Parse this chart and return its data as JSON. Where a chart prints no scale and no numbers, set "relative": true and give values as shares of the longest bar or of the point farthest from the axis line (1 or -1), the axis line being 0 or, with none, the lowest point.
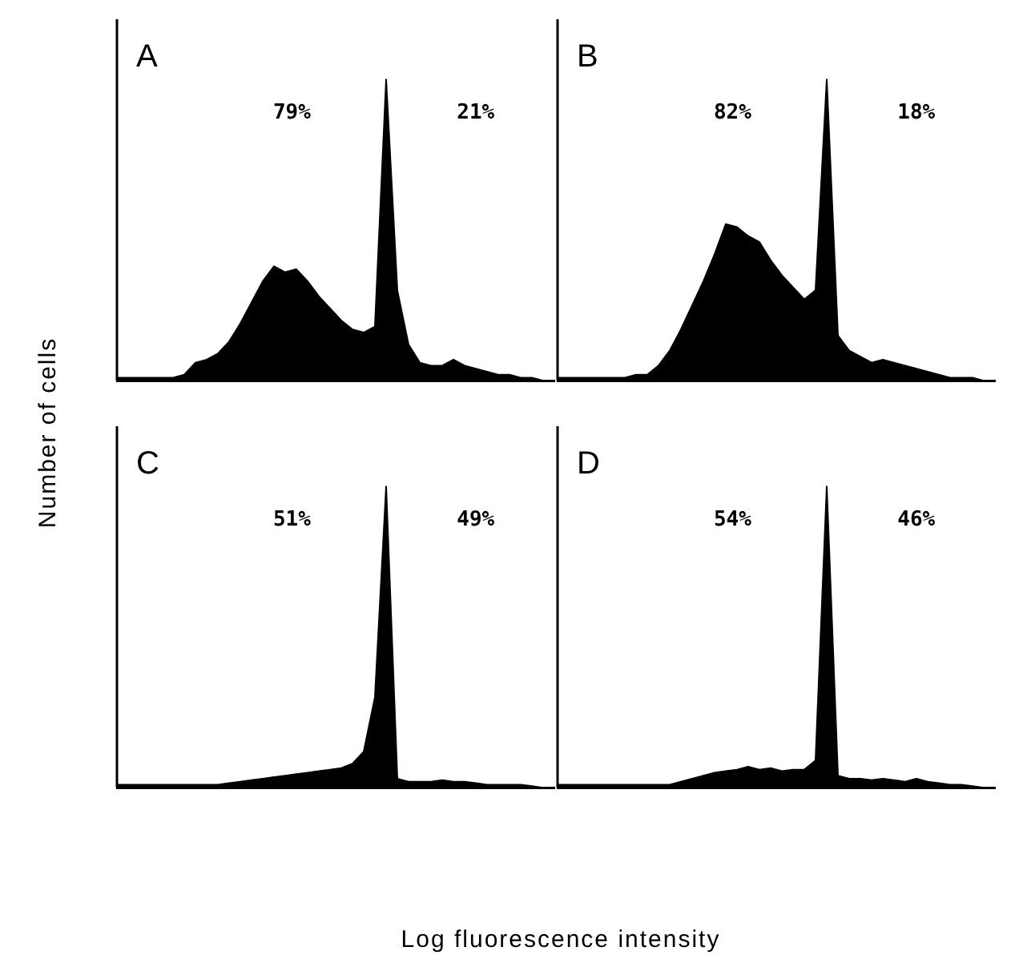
{
  "chart_data": [
    {
      "type": "area",
      "title": "A",
      "relative": true,
      "grid": false,
      "legend": false,
      "ylabel": "Number of cells",
      "annotations": [
        "79%",
        "21%"
      ],
      "categories": [
        null,
        null,
        null,
        null,
        null,
        null,
        null,
        null,
        null,
        null,
        null,
        null,
        null,
        null,
        null,
        null,
        null,
        null,
        null,
        null,
        null,
        null,
        null,
        null,
        null,
        null,
        null,
        null,
        null,
        null,
        null,
        null,
        null,
        null,
        null,
        null,
        null,
        null,
        null,
        null
      ],
      "series": [
        {
          "color": "#000000",
          "values": [
            0.01,
            0.01,
            0.01,
            0.01,
            0.01,
            0.01,
            0.02,
            0.06,
            0.07,
            0.09,
            0.13,
            0.19,
            0.26,
            0.33,
            0.38,
            0.36,
            0.37,
            0.33,
            0.28,
            0.24,
            0.2,
            0.17,
            0.16,
            0.18,
            1,
            0.3,
            0.12,
            0.06,
            0.05,
            0.05,
            0.07,
            0.05,
            0.04,
            0.03,
            0.02,
            0.02,
            0.01,
            0.01,
            0,
            0
          ]
        }
      ]
    },
    {
      "type": "area",
      "title": "B",
      "relative": true,
      "grid": false,
      "legend": false,
      "annotations": [
        "82%",
        "18%"
      ],
      "categories": [
        null,
        null,
        null,
        null,
        null,
        null,
        null,
        null,
        null,
        null,
        null,
        null,
        null,
        null,
        null,
        null,
        null,
        null,
        null,
        null,
        null,
        null,
        null,
        null,
        null,
        null,
        null,
        null,
        null,
        null,
        null,
        null,
        null,
        null,
        null,
        null,
        null,
        null,
        null,
        null
      ],
      "series": [
        {
          "color": "#000000",
          "values": [
            0.01,
            0.01,
            0.01,
            0.01,
            0.01,
            0.01,
            0.01,
            0.02,
            0.02,
            0.05,
            0.1,
            0.17,
            0.25,
            0.33,
            0.42,
            0.52,
            0.51,
            0.48,
            0.46,
            0.4,
            0.35,
            0.31,
            0.27,
            0.3,
            1,
            0.15,
            0.1,
            0.08,
            0.06,
            0.07,
            0.06,
            0.05,
            0.04,
            0.03,
            0.02,
            0.01,
            0.01,
            0.01,
            0,
            0
          ]
        }
      ]
    },
    {
      "type": "area",
      "title": "C",
      "relative": true,
      "grid": false,
      "legend": false,
      "xlabel": "Log fluorescence intensity",
      "annotations": [
        "51%",
        "49%"
      ],
      "categories": [
        null,
        null,
        null,
        null,
        null,
        null,
        null,
        null,
        null,
        null,
        null,
        null,
        null,
        null,
        null,
        null,
        null,
        null,
        null,
        null,
        null,
        null,
        null,
        null,
        null,
        null,
        null,
        null,
        null,
        null,
        null,
        null,
        null,
        null,
        null,
        null,
        null,
        null,
        null,
        null
      ],
      "series": [
        {
          "color": "#000000",
          "values": [
            0.01,
            0.01,
            0.01,
            0.01,
            0.01,
            0.01,
            0.01,
            0.01,
            0.01,
            0.01,
            0.015,
            0.02,
            0.025,
            0.03,
            0.035,
            0.04,
            0.045,
            0.05,
            0.055,
            0.06,
            0.065,
            0.08,
            0.12,
            0.3,
            1,
            0.03,
            0.02,
            0.02,
            0.02,
            0.025,
            0.02,
            0.02,
            0.015,
            0.01,
            0.01,
            0.01,
            0.01,
            0.005,
            0,
            0
          ]
        }
      ]
    },
    {
      "type": "area",
      "title": "D",
      "relative": true,
      "grid": false,
      "legend": false,
      "annotations": [
        "54%",
        "46%"
      ],
      "categories": [
        null,
        null,
        null,
        null,
        null,
        null,
        null,
        null,
        null,
        null,
        null,
        null,
        null,
        null,
        null,
        null,
        null,
        null,
        null,
        null,
        null,
        null,
        null,
        null,
        null,
        null,
        null,
        null,
        null,
        null,
        null,
        null,
        null,
        null,
        null,
        null,
        null,
        null,
        null,
        null
      ],
      "series": [
        {
          "color": "#000000",
          "values": [
            0.01,
            0.01,
            0.01,
            0.01,
            0.01,
            0.01,
            0.01,
            0.01,
            0.01,
            0.01,
            0.01,
            0.02,
            0.03,
            0.04,
            0.05,
            0.055,
            0.06,
            0.07,
            0.06,
            0.065,
            0.055,
            0.06,
            0.06,
            0.09,
            1,
            0.04,
            0.03,
            0.03,
            0.025,
            0.03,
            0.025,
            0.02,
            0.03,
            0.02,
            0.015,
            0.01,
            0.01,
            0.005,
            0,
            0
          ]
        }
      ]
    }
  ]
}
